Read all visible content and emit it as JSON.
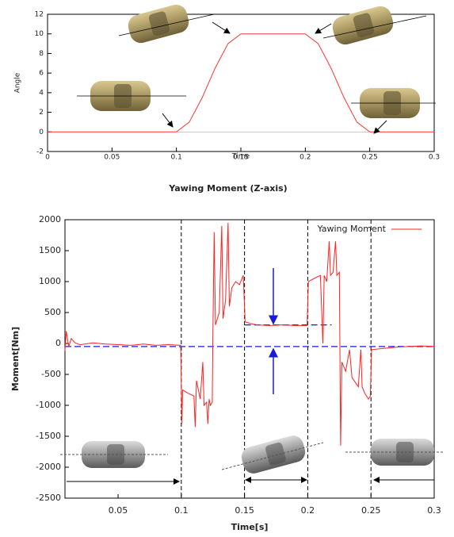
{
  "chart_data": [
    {
      "type": "line",
      "x_label": "Time",
      "y_label": "Angle",
      "x": [
        0,
        0.1,
        0.11,
        0.12,
        0.13,
        0.14,
        0.15,
        0.2,
        0.21,
        0.22,
        0.23,
        0.24,
        0.25,
        0.3
      ],
      "series": [
        {
          "color": "#ff3030",
          "values": [
            0,
            0,
            1,
            3.5,
            6.5,
            9,
            10,
            10,
            9,
            6.5,
            3.5,
            1,
            0,
            0
          ]
        }
      ],
      "xlim": [
        0,
        0.3
      ],
      "xticks": [
        0,
        0.05,
        0.1,
        0.15,
        0.2,
        0.25,
        0.3
      ],
      "ylim": [
        -2,
        12
      ],
      "yticks": [
        -2,
        0,
        2,
        4,
        6,
        8,
        10,
        12
      ]
    },
    {
      "type": "line",
      "title": "Yawing Moment (Z-axis)",
      "x_label": "Time[s]",
      "y_label": "Moment[Nm]",
      "x": [
        0.008,
        0.009,
        0.011,
        0.013,
        0.016,
        0.02,
        0.03,
        0.04,
        0.05,
        0.06,
        0.07,
        0.08,
        0.09,
        0.0995,
        0.1005,
        0.101,
        0.105,
        0.11,
        0.111,
        0.112,
        0.115,
        0.117,
        0.118,
        0.12,
        0.121,
        0.122,
        0.123,
        0.1245,
        0.125,
        0.126,
        0.127,
        0.13,
        0.132,
        0.133,
        0.135,
        0.137,
        0.138,
        0.14,
        0.143,
        0.146,
        0.149,
        0.1505,
        0.155,
        0.16,
        0.17,
        0.18,
        0.19,
        0.1995,
        0.2005,
        0.205,
        0.21,
        0.212,
        0.213,
        0.215,
        0.217,
        0.218,
        0.22,
        0.222,
        0.223,
        0.225,
        0.226,
        0.227,
        0.23,
        0.233,
        0.235,
        0.24,
        0.242,
        0.243,
        0.245,
        0.248,
        0.2495,
        0.2505,
        0.26,
        0.27,
        0.28,
        0.29,
        0.3
      ],
      "series": [
        {
          "name": "Yawing Moment",
          "color": "#ff2020",
          "values": [
            -120,
            200,
            -50,
            80,
            10,
            -20,
            10,
            -10,
            -20,
            -30,
            -10,
            -30,
            -20,
            -30,
            -1300,
            -750,
            -800,
            -850,
            -1350,
            -600,
            -900,
            -300,
            -1000,
            -950,
            -1300,
            -900,
            -1000,
            -950,
            200,
            1800,
            300,
            500,
            1900,
            400,
            700,
            1950,
            600,
            900,
            1000,
            950,
            1100,
            350,
            320,
            300,
            290,
            300,
            290,
            290,
            1000,
            1050,
            1100,
            0,
            1100,
            1000,
            1650,
            1100,
            1150,
            1650,
            1100,
            1150,
            -1650,
            -300,
            -450,
            -100,
            -550,
            -700,
            -100,
            -700,
            -800,
            -900,
            -850,
            -100,
            -80,
            -60,
            -50,
            -40,
            -50
          ]
        }
      ],
      "vlines": [
        0.1,
        0.15,
        0.2,
        0.25
      ],
      "hlines": [
        -50,
        300
      ],
      "xlim": [
        0.008,
        0.3
      ],
      "xticks": [
        0.05,
        0.1,
        0.15,
        0.2,
        0.25,
        0.3
      ],
      "ylim": [
        -2500,
        2000
      ],
      "yticks": [
        -2500,
        -2000,
        -1500,
        -1000,
        -500,
        0,
        500,
        1000,
        1500,
        2000
      ]
    }
  ]
}
